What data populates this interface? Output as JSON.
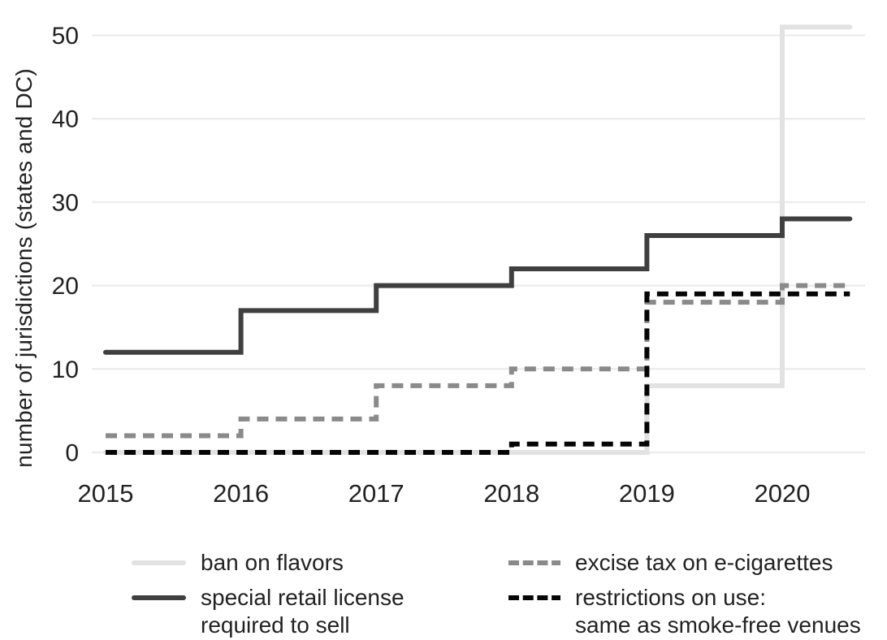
{
  "chart_data": {
    "type": "line",
    "subtype": "step-after",
    "title": "",
    "xlabel": "",
    "ylabel": "number of jurisdictions (states and DC)",
    "x": [
      2015,
      2016,
      2017,
      2018,
      2019,
      2020
    ],
    "x_end": 2020.5,
    "xlim": [
      2015,
      2020.5
    ],
    "ylim": [
      0,
      51
    ],
    "y_ticks": [
      0,
      10,
      20,
      30,
      40,
      50
    ],
    "x_ticks": [
      "2015",
      "2016",
      "2017",
      "2018",
      "2019",
      "2020"
    ],
    "grid": "horizontal-only",
    "grid_color": "#ededed",
    "legend_position": "bottom",
    "series": [
      {
        "name": "ban on flavors",
        "values": [
          0,
          0,
          0,
          0,
          8,
          51
        ],
        "color": "#e2e2e2",
        "style": "solid"
      },
      {
        "name": "special retail license required to sell",
        "values": [
          12,
          17,
          20,
          22,
          26,
          28
        ],
        "color": "#3f3f3f",
        "style": "solid"
      },
      {
        "name": "excise tax on e-cigarettes",
        "values": [
          2,
          4,
          8,
          10,
          18,
          20
        ],
        "color": "#8a8a8a",
        "style": "dashed"
      },
      {
        "name": "restrictions on use: same as smoke-free venues",
        "values": [
          0,
          0,
          0,
          1,
          19,
          19
        ],
        "color": "#050505",
        "style": "dashed"
      }
    ]
  },
  "y_axis": {
    "title": "number of jurisdictions (states and DC)",
    "tick_labels": [
      "0",
      "10",
      "20",
      "30",
      "40",
      "50"
    ]
  },
  "x_axis": {
    "tick_labels": [
      "2015",
      "2016",
      "2017",
      "2018",
      "2019",
      "2020"
    ]
  },
  "legend": {
    "items": [
      {
        "label": "ban on flavors",
        "series": 0
      },
      {
        "label": "special retail license\nrequired to sell",
        "series": 1
      },
      {
        "label": "excise tax on e-cigarettes",
        "series": 2
      },
      {
        "label": "restrictions on use:\nsame as smoke-free venues",
        "series": 3
      }
    ]
  }
}
